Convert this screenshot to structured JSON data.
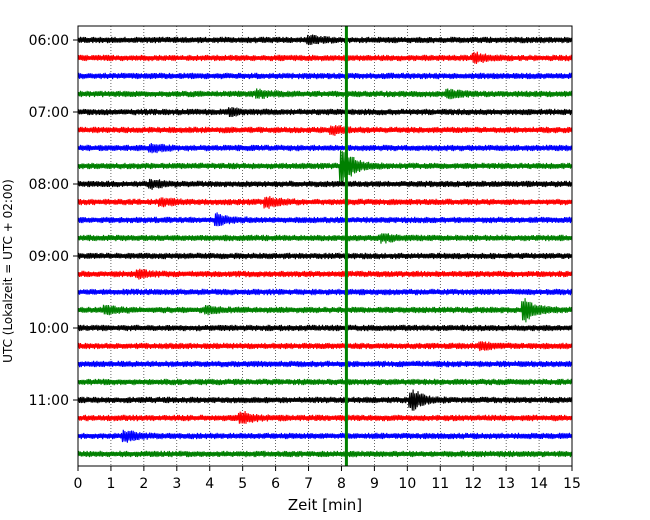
{
  "chart_data": {
    "type": "line",
    "title": "",
    "xlabel": "Zeit  [min]",
    "ylabel": "UTC (Lokalzeit = UTC + 02:00)",
    "xlim": [
      0,
      15
    ],
    "xticks": [
      "0",
      "1",
      "2",
      "3",
      "4",
      "5",
      "6",
      "7",
      "8",
      "9",
      "10",
      "11",
      "12",
      "13",
      "14",
      "15"
    ],
    "yticks": [
      {
        "label": "06:00",
        "row": 0
      },
      {
        "label": "07:00",
        "row": 4
      },
      {
        "label": "08:00",
        "row": 8
      },
      {
        "label": "09:00",
        "row": 12
      },
      {
        "label": "10:00",
        "row": 16
      },
      {
        "label": "11:00",
        "row": 20
      }
    ],
    "grid": true,
    "start_time": "06:00",
    "row_minutes": 15,
    "trace_colors": [
      "#000000",
      "#ff0000",
      "#0000ff",
      "#008000"
    ],
    "rows": [
      {
        "time": "06:00",
        "color": "#000000",
        "events": [
          {
            "t": 7.1,
            "amp": 0.3
          }
        ]
      },
      {
        "time": "06:15",
        "color": "#ff0000",
        "events": [
          {
            "t": 12.1,
            "amp": 0.4
          }
        ]
      },
      {
        "time": "06:30",
        "color": "#0000ff",
        "events": []
      },
      {
        "time": "06:45",
        "color": "#008000",
        "events": [
          {
            "t": 5.5,
            "amp": 0.3
          },
          {
            "t": 11.3,
            "amp": 0.3
          }
        ]
      },
      {
        "time": "07:00",
        "color": "#000000",
        "events": [
          {
            "t": 4.7,
            "amp": 0.3
          }
        ]
      },
      {
        "time": "07:15",
        "color": "#ff0000",
        "events": [
          {
            "t": 7.8,
            "amp": 0.3
          }
        ]
      },
      {
        "time": "07:30",
        "color": "#0000ff",
        "events": [
          {
            "t": 2.3,
            "amp": 0.3
          }
        ]
      },
      {
        "time": "07:45",
        "color": "#008000",
        "events": [
          {
            "t": 8.1,
            "amp": 1.6
          }
        ]
      },
      {
        "time": "08:00",
        "color": "#000000",
        "events": [
          {
            "t": 2.3,
            "amp": 0.3
          }
        ]
      },
      {
        "time": "08:15",
        "color": "#ff0000",
        "events": [
          {
            "t": 2.6,
            "amp": 0.3
          },
          {
            "t": 5.8,
            "amp": 0.4
          }
        ]
      },
      {
        "time": "08:30",
        "color": "#0000ff",
        "events": [
          {
            "t": 4.3,
            "amp": 0.5
          }
        ]
      },
      {
        "time": "08:45",
        "color": "#008000",
        "events": [
          {
            "t": 9.3,
            "amp": 0.3
          }
        ]
      },
      {
        "time": "09:00",
        "color": "#000000",
        "events": []
      },
      {
        "time": "09:15",
        "color": "#ff0000",
        "events": [
          {
            "t": 1.9,
            "amp": 0.3
          }
        ]
      },
      {
        "time": "09:30",
        "color": "#0000ff",
        "events": []
      },
      {
        "time": "09:45",
        "color": "#008000",
        "events": [
          {
            "t": 0.9,
            "amp": 0.3
          },
          {
            "t": 4.0,
            "amp": 0.3
          },
          {
            "t": 13.6,
            "amp": 1.0
          }
        ]
      },
      {
        "time": "10:00",
        "color": "#000000",
        "events": []
      },
      {
        "time": "10:15",
        "color": "#ff0000",
        "events": [
          {
            "t": 12.3,
            "amp": 0.3
          }
        ]
      },
      {
        "time": "10:30",
        "color": "#0000ff",
        "events": []
      },
      {
        "time": "10:45",
        "color": "#008000",
        "events": []
      },
      {
        "time": "11:00",
        "color": "#000000",
        "events": [
          {
            "t": 10.2,
            "amp": 0.9
          }
        ]
      },
      {
        "time": "11:15",
        "color": "#ff0000",
        "events": [
          {
            "t": 5.0,
            "amp": 0.5
          }
        ]
      },
      {
        "time": "11:30",
        "color": "#0000ff",
        "events": [
          {
            "t": 1.5,
            "amp": 0.4
          }
        ]
      },
      {
        "time": "11:45",
        "color": "#008000",
        "events": []
      }
    ],
    "vertical_marker": {
      "t": 8.15,
      "color": "#008000"
    }
  }
}
